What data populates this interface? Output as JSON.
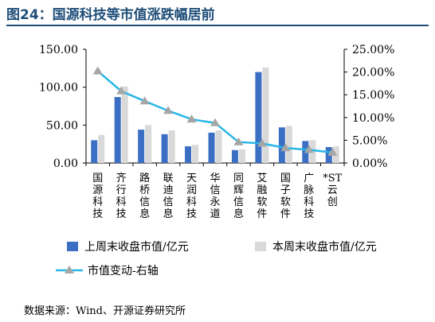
{
  "header": {
    "title": "图24：国源科技等市值涨跌幅居前"
  },
  "footer": {
    "source": "数据来源：Wind、开源证券研究所"
  },
  "colors": {
    "series_last": "#3a6fc4",
    "series_this": "#d9d9d9",
    "line": "#29b6e8",
    "marker": "#a6a6a6"
  },
  "chart_data": {
    "type": "bar",
    "title": "",
    "categories": [
      "国源科技",
      "齐行科技",
      "路桥信息",
      "联迪信息",
      "天润科技",
      "华信永道",
      "同辉信息",
      "艾融软件",
      "国子软件",
      "广脉科技",
      "*ST云创"
    ],
    "series": [
      {
        "name": "上周末收盘市值/亿元",
        "type": "bar",
        "axis": "left",
        "values": [
          30,
          87,
          44,
          38,
          22,
          40,
          17,
          120,
          47,
          29,
          21
        ]
      },
      {
        "name": "本周末收盘市值/亿元",
        "type": "bar",
        "axis": "left",
        "values": [
          37,
          101,
          50,
          43,
          24,
          43,
          18,
          126,
          49,
          30,
          22
        ]
      },
      {
        "name": "市值变动-右轴",
        "type": "line",
        "axis": "right",
        "values": [
          20.2,
          15.8,
          13.6,
          11.5,
          9.6,
          8.8,
          4.6,
          4.3,
          3.3,
          2.9,
          2.3
        ]
      }
    ],
    "y_left": {
      "ylim": [
        0,
        150
      ],
      "ticks": [
        0,
        50,
        100,
        150
      ],
      "tick_labels": [
        "0.00",
        "50.00",
        "100.00",
        "150.00"
      ]
    },
    "y_right": {
      "ylim": [
        0,
        25
      ],
      "ticks": [
        0,
        5,
        10,
        15,
        20,
        25
      ],
      "tick_labels": [
        "0.00%",
        "5.00%",
        "10.00%",
        "15.00%",
        "20.00%",
        "25.00%"
      ]
    },
    "legend": {
      "placement": "bottom"
    },
    "grid": false
  }
}
